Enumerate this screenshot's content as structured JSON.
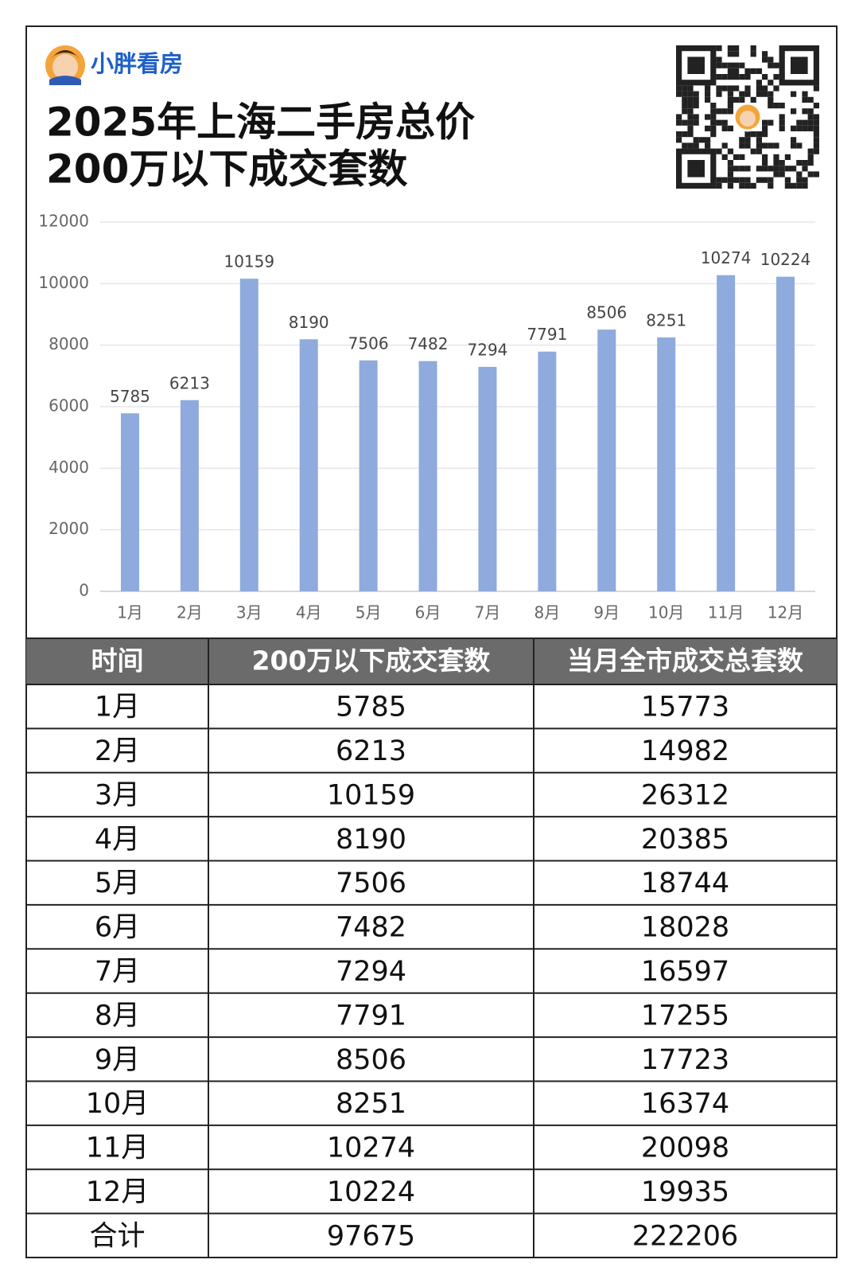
{
  "brand": "小胖看房",
  "title": [
    "2025年上海二手房总价",
    "200万以下成交套数"
  ],
  "chart_data": {
    "type": "bar",
    "categories": [
      "1月",
      "2月",
      "3月",
      "4月",
      "5月",
      "6月",
      "7月",
      "8月",
      "9月",
      "10月",
      "11月",
      "12月"
    ],
    "values": [
      5785,
      6213,
      10159,
      8190,
      7506,
      7482,
      7294,
      7791,
      8506,
      8251,
      10274,
      10224
    ],
    "color": "#8faadc",
    "ylim": [
      0,
      12000
    ],
    "yticks": [
      0,
      2000,
      4000,
      6000,
      8000,
      10000,
      12000
    ],
    "grid": true
  },
  "table": {
    "header": [
      "时间",
      "200万以下成交套数",
      "当月全市成交总套数"
    ],
    "rows": [
      [
        "1月",
        5785,
        15773
      ],
      [
        "2月",
        6213,
        14982
      ],
      [
        "3月",
        10159,
        26312
      ],
      [
        "4月",
        8190,
        20385
      ],
      [
        "5月",
        7506,
        18744
      ],
      [
        "6月",
        7482,
        18028
      ],
      [
        "7月",
        7294,
        16597
      ],
      [
        "8月",
        7791,
        17255
      ],
      [
        "9月",
        8506,
        17723
      ],
      [
        "10月",
        8251,
        16374
      ],
      [
        "11月",
        10274,
        20098
      ],
      [
        "12月",
        10224,
        19935
      ],
      [
        "合计",
        97675,
        222206
      ]
    ]
  }
}
